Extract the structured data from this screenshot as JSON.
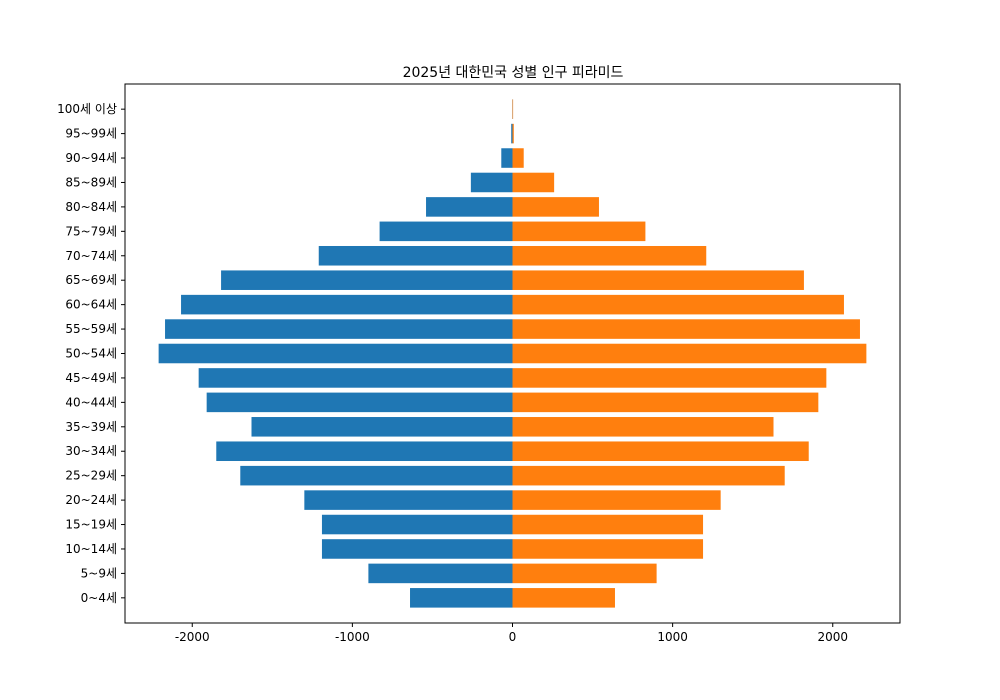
{
  "chart_data": {
    "type": "bar",
    "orientation": "horizontal",
    "title": "2025년 대한민국 성별 인구 피라미드",
    "xlabel": "",
    "ylabel": "",
    "xlim": [
      -2420,
      2420
    ],
    "xticks": [
      -2000,
      -1000,
      0,
      1000,
      2000
    ],
    "xtick_labels": [
      "-2000",
      "-1000",
      "0",
      "1000",
      "2000"
    ],
    "grid": false,
    "categories": [
      "0~4세",
      "5~9세",
      "10~14세",
      "15~19세",
      "20~24세",
      "25~29세",
      "30~34세",
      "35~39세",
      "40~44세",
      "45~49세",
      "50~54세",
      "55~59세",
      "60~64세",
      "65~69세",
      "70~74세",
      "75~79세",
      "80~84세",
      "85~89세",
      "90~94세",
      "95~99세",
      "100세 이상"
    ],
    "series": [
      {
        "color": "#1f77b4",
        "values": [
          -640,
          -900,
          -1190,
          -1190,
          -1300,
          -1700,
          -1850,
          -1630,
          -1910,
          -1960,
          -2210,
          -2170,
          -2070,
          -1820,
          -1210,
          -830,
          -540,
          -260,
          -70,
          -8,
          -1
        ]
      },
      {
        "color": "#ff7f0e",
        "values": [
          640,
          900,
          1190,
          1190,
          1300,
          1700,
          1850,
          1630,
          1910,
          1960,
          2210,
          2170,
          2070,
          1820,
          1210,
          830,
          540,
          260,
          70,
          8,
          1
        ]
      }
    ]
  }
}
